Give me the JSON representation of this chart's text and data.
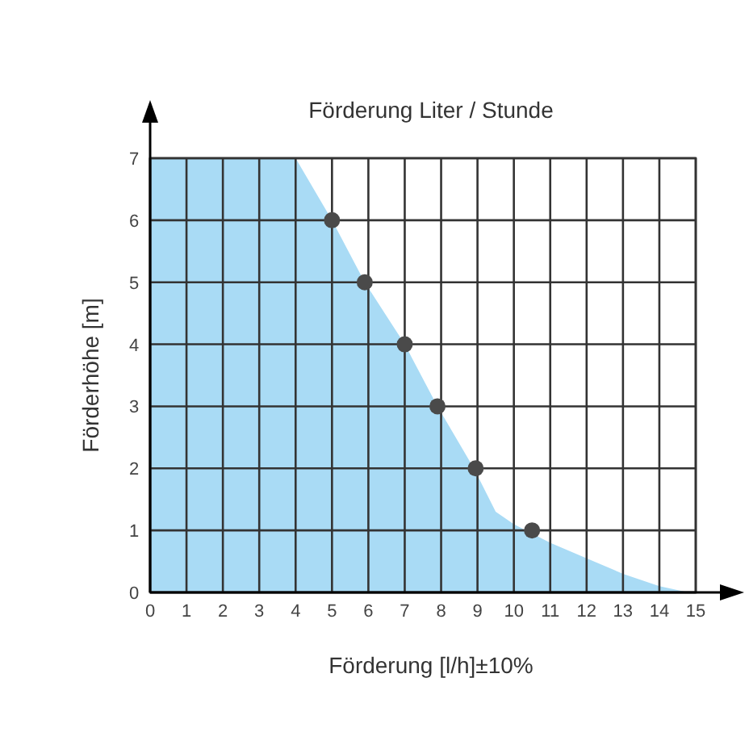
{
  "chart_data": {
    "type": "area",
    "title": "Förderung Liter / Stunde",
    "xlabel": "Förderung [l/h]±10%",
    "ylabel": "Förderhöhe [m]",
    "xlim": [
      0,
      15
    ],
    "ylim": [
      0,
      7
    ],
    "xticks": [
      0,
      1,
      2,
      3,
      4,
      5,
      6,
      7,
      8,
      9,
      10,
      11,
      12,
      13,
      14,
      15
    ],
    "yticks": [
      0,
      1,
      2,
      3,
      4,
      5,
      6,
      7
    ],
    "grid": true,
    "series": [
      {
        "type": "area",
        "color": "#a9dbf5",
        "x": [
          0,
          4,
          5,
          5.9,
          7,
          7.9,
          8.9,
          9.5,
          10,
          11,
          12,
          13,
          14,
          14.8
        ],
        "values": [
          7,
          7,
          6,
          5,
          4,
          3,
          2,
          1.3,
          1.1,
          0.8,
          0.55,
          0.3,
          0.1,
          0
        ]
      },
      {
        "type": "scatter",
        "color": "#4a4a4a",
        "marker": "circle",
        "x": [
          5,
          5.9,
          7,
          7.9,
          8.95,
          10.5
        ],
        "values": [
          6,
          5,
          4,
          3,
          2,
          1
        ]
      }
    ]
  }
}
